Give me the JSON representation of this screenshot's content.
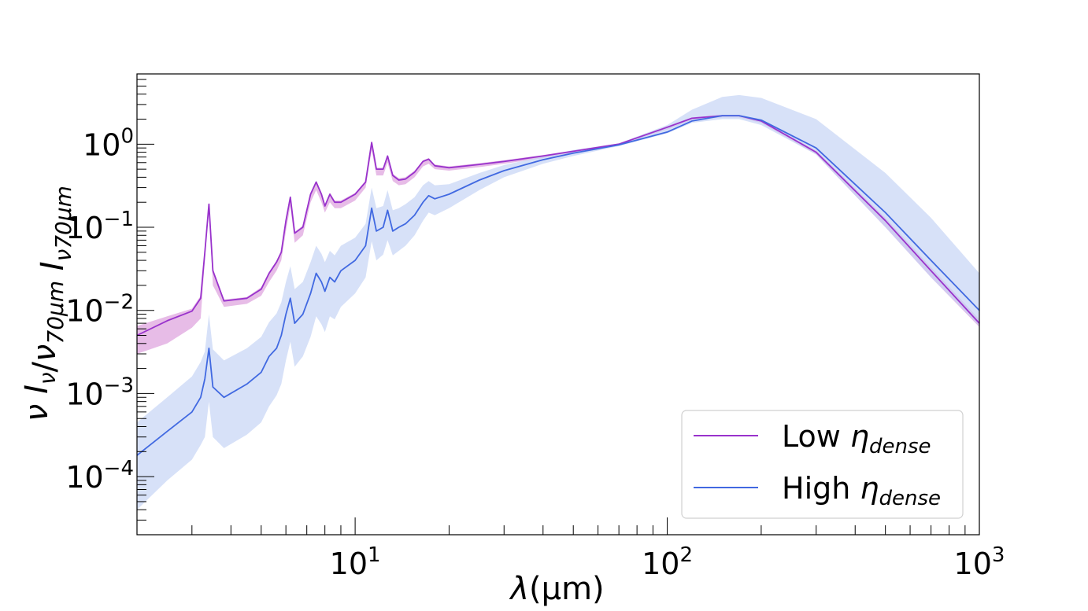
{
  "chart_data": {
    "type": "line",
    "xscale": "log",
    "yscale": "log",
    "xlim": [
      2,
      1000
    ],
    "ylim": [
      2e-05,
      7
    ],
    "xlabel": "λ(μm)",
    "ylabel": "ν I_ν/ν_70μm I_ν70μm",
    "x_ticks": [
      {
        "base": "10",
        "exp": "1",
        "value": 10
      },
      {
        "base": "10",
        "exp": "2",
        "value": 100
      },
      {
        "base": "10",
        "exp": "3",
        "value": 1000
      }
    ],
    "y_ticks": [
      {
        "base": "10",
        "exp": "0",
        "value": 1
      },
      {
        "base": "10",
        "exp": "−1",
        "value": 0.1
      },
      {
        "base": "10",
        "exp": "−2",
        "value": 0.01
      },
      {
        "base": "10",
        "exp": "−3",
        "value": 0.001
      },
      {
        "base": "10",
        "exp": "−4",
        "value": 0.0001
      }
    ],
    "legend_position": "bottom-right",
    "series": [
      {
        "name": "Low η_dense",
        "label_main": "Low ",
        "label_sym": "η",
        "label_sub": "dense",
        "color": "#9932CC",
        "band_color": "#DDA0DD",
        "x": [
          2,
          2.5,
          3.0,
          3.2,
          3.3,
          3.4,
          3.5,
          3.8,
          4.5,
          5.0,
          5.3,
          5.6,
          5.8,
          6.0,
          6.2,
          6.4,
          6.8,
          7.2,
          7.5,
          7.8,
          8.0,
          8.3,
          8.6,
          9.0,
          10.0,
          10.8,
          11.3,
          11.7,
          12.3,
          12.7,
          13.2,
          13.8,
          14.5,
          15.5,
          16.5,
          17.2,
          18,
          20,
          25,
          30,
          40,
          50,
          70,
          100,
          120,
          150,
          170,
          200,
          300,
          500,
          700,
          1000
        ],
        "y": [
          0.005,
          0.0075,
          0.0098,
          0.014,
          0.05,
          0.19,
          0.03,
          0.013,
          0.014,
          0.018,
          0.028,
          0.038,
          0.05,
          0.12,
          0.23,
          0.085,
          0.1,
          0.25,
          0.35,
          0.25,
          0.18,
          0.25,
          0.2,
          0.2,
          0.25,
          0.35,
          1.05,
          0.5,
          0.5,
          0.72,
          0.42,
          0.37,
          0.38,
          0.46,
          0.62,
          0.66,
          0.55,
          0.52,
          0.57,
          0.62,
          0.72,
          0.82,
          1.0,
          1.6,
          2.05,
          2.2,
          2.2,
          1.9,
          0.8,
          0.12,
          0.03,
          0.007
        ],
        "band_lower": [
          0.003,
          0.004,
          0.0062,
          0.008,
          0.04,
          0.17,
          0.02,
          0.011,
          0.012,
          0.015,
          0.022,
          0.03,
          0.04,
          0.09,
          0.18,
          0.065,
          0.08,
          0.2,
          0.28,
          0.2,
          0.15,
          0.2,
          0.17,
          0.17,
          0.21,
          0.3,
          0.85,
          0.42,
          0.42,
          0.6,
          0.36,
          0.32,
          0.33,
          0.4,
          0.54,
          0.58,
          0.5,
          0.48,
          0.53,
          0.58,
          0.68,
          0.78,
          0.98,
          1.5,
          1.95,
          2.1,
          2.1,
          1.8,
          0.75,
          0.1,
          0.025,
          0.0063
        ],
        "band_upper": [
          0.0065,
          0.0085,
          0.0105,
          0.015,
          0.055,
          0.2,
          0.032,
          0.0135,
          0.0145,
          0.019,
          0.029,
          0.04,
          0.052,
          0.125,
          0.235,
          0.088,
          0.105,
          0.26,
          0.36,
          0.26,
          0.19,
          0.26,
          0.21,
          0.21,
          0.26,
          0.36,
          1.08,
          0.52,
          0.52,
          0.74,
          0.44,
          0.39,
          0.4,
          0.48,
          0.64,
          0.68,
          0.57,
          0.54,
          0.59,
          0.64,
          0.74,
          0.84,
          1.02,
          1.65,
          2.1,
          2.25,
          2.25,
          1.95,
          0.84,
          0.13,
          0.033,
          0.0078
        ]
      },
      {
        "name": "High η_dense",
        "label_main": "High ",
        "label_sym": "η",
        "label_sub": "dense",
        "color": "#4169E1",
        "band_color": "#C6D4F5",
        "x": [
          2,
          2.5,
          3.0,
          3.2,
          3.3,
          3.4,
          3.5,
          3.8,
          4.5,
          5.0,
          5.3,
          5.6,
          5.8,
          6.0,
          6.2,
          6.4,
          6.8,
          7.2,
          7.5,
          7.8,
          8.0,
          8.3,
          8.6,
          9.0,
          10.0,
          10.8,
          11.3,
          11.7,
          12.3,
          12.7,
          13.2,
          13.8,
          14.5,
          15.5,
          16.5,
          17.2,
          18,
          20,
          25,
          30,
          40,
          50,
          70,
          100,
          120,
          150,
          170,
          200,
          300,
          500,
          700,
          1000
        ],
        "y": [
          0.00018,
          0.00035,
          0.0006,
          0.0009,
          0.0015,
          0.0035,
          0.0012,
          0.0009,
          0.0013,
          0.0018,
          0.0028,
          0.0035,
          0.005,
          0.009,
          0.014,
          0.007,
          0.009,
          0.016,
          0.028,
          0.022,
          0.017,
          0.025,
          0.022,
          0.03,
          0.04,
          0.06,
          0.17,
          0.09,
          0.1,
          0.16,
          0.09,
          0.1,
          0.11,
          0.14,
          0.2,
          0.24,
          0.22,
          0.25,
          0.37,
          0.48,
          0.65,
          0.78,
          0.98,
          1.4,
          1.9,
          2.2,
          2.2,
          1.95,
          0.9,
          0.15,
          0.04,
          0.01
        ],
        "band_lower": [
          4e-05,
          9e-05,
          0.00016,
          0.00024,
          0.0003,
          0.0008,
          0.0003,
          0.00022,
          0.00032,
          0.00045,
          0.0007,
          0.00095,
          0.0013,
          0.0025,
          0.0042,
          0.0021,
          0.0028,
          0.0048,
          0.0085,
          0.0068,
          0.0055,
          0.0085,
          0.0078,
          0.011,
          0.016,
          0.025,
          0.068,
          0.04,
          0.047,
          0.07,
          0.046,
          0.052,
          0.06,
          0.08,
          0.12,
          0.15,
          0.14,
          0.17,
          0.28,
          0.4,
          0.58,
          0.72,
          0.95,
          1.35,
          1.8,
          2.0,
          2.0,
          1.7,
          0.75,
          0.1,
          0.025,
          0.0065
        ],
        "band_upper": [
          0.00045,
          0.0009,
          0.0016,
          0.0024,
          0.0032,
          0.009,
          0.0034,
          0.0025,
          0.0035,
          0.0048,
          0.0072,
          0.0092,
          0.0125,
          0.022,
          0.034,
          0.018,
          0.022,
          0.038,
          0.06,
          0.048,
          0.038,
          0.052,
          0.046,
          0.06,
          0.075,
          0.11,
          0.3,
          0.17,
          0.18,
          0.28,
          0.16,
          0.17,
          0.19,
          0.23,
          0.32,
          0.36,
          0.32,
          0.33,
          0.45,
          0.56,
          0.71,
          0.85,
          1.02,
          1.7,
          2.6,
          3.7,
          3.9,
          3.6,
          2.0,
          0.45,
          0.13,
          0.028
        ]
      }
    ]
  }
}
